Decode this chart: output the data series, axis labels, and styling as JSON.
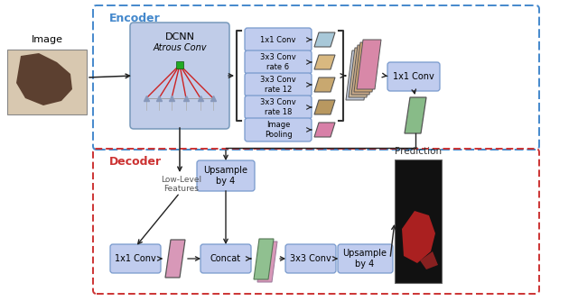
{
  "bg": "#FFFFFF",
  "encoder_border": "#4488CC",
  "decoder_border": "#CC3333",
  "rounded_box_color": "#C0CCEE",
  "rounded_box_edge": "#7799CC",
  "dcnn_box_color": "#C0CCE8",
  "dcnn_box_edge": "#7799BB",
  "aspp_labels": [
    "1x1 Conv",
    "3x3 Conv\nrate 6",
    "3x3 Conv\nrate 12",
    "3x3 Conv\nrate 18",
    "Image\nPooling"
  ],
  "feat_colors": [
    "#A8C8D8",
    "#D8B880",
    "#C8A870",
    "#B89860",
    "#D880A8"
  ],
  "stack_colors": [
    "#C0C8D8",
    "#D0B898",
    "#C8A888",
    "#D0A878",
    "#D888A8"
  ],
  "green_out": "#88BB88",
  "pink_para": "#D898B8",
  "green_pink_green": "#90C090",
  "green_pink_pink": "#D898B8",
  "pred_bg": "#111111",
  "pred_horse": "#AA2222"
}
